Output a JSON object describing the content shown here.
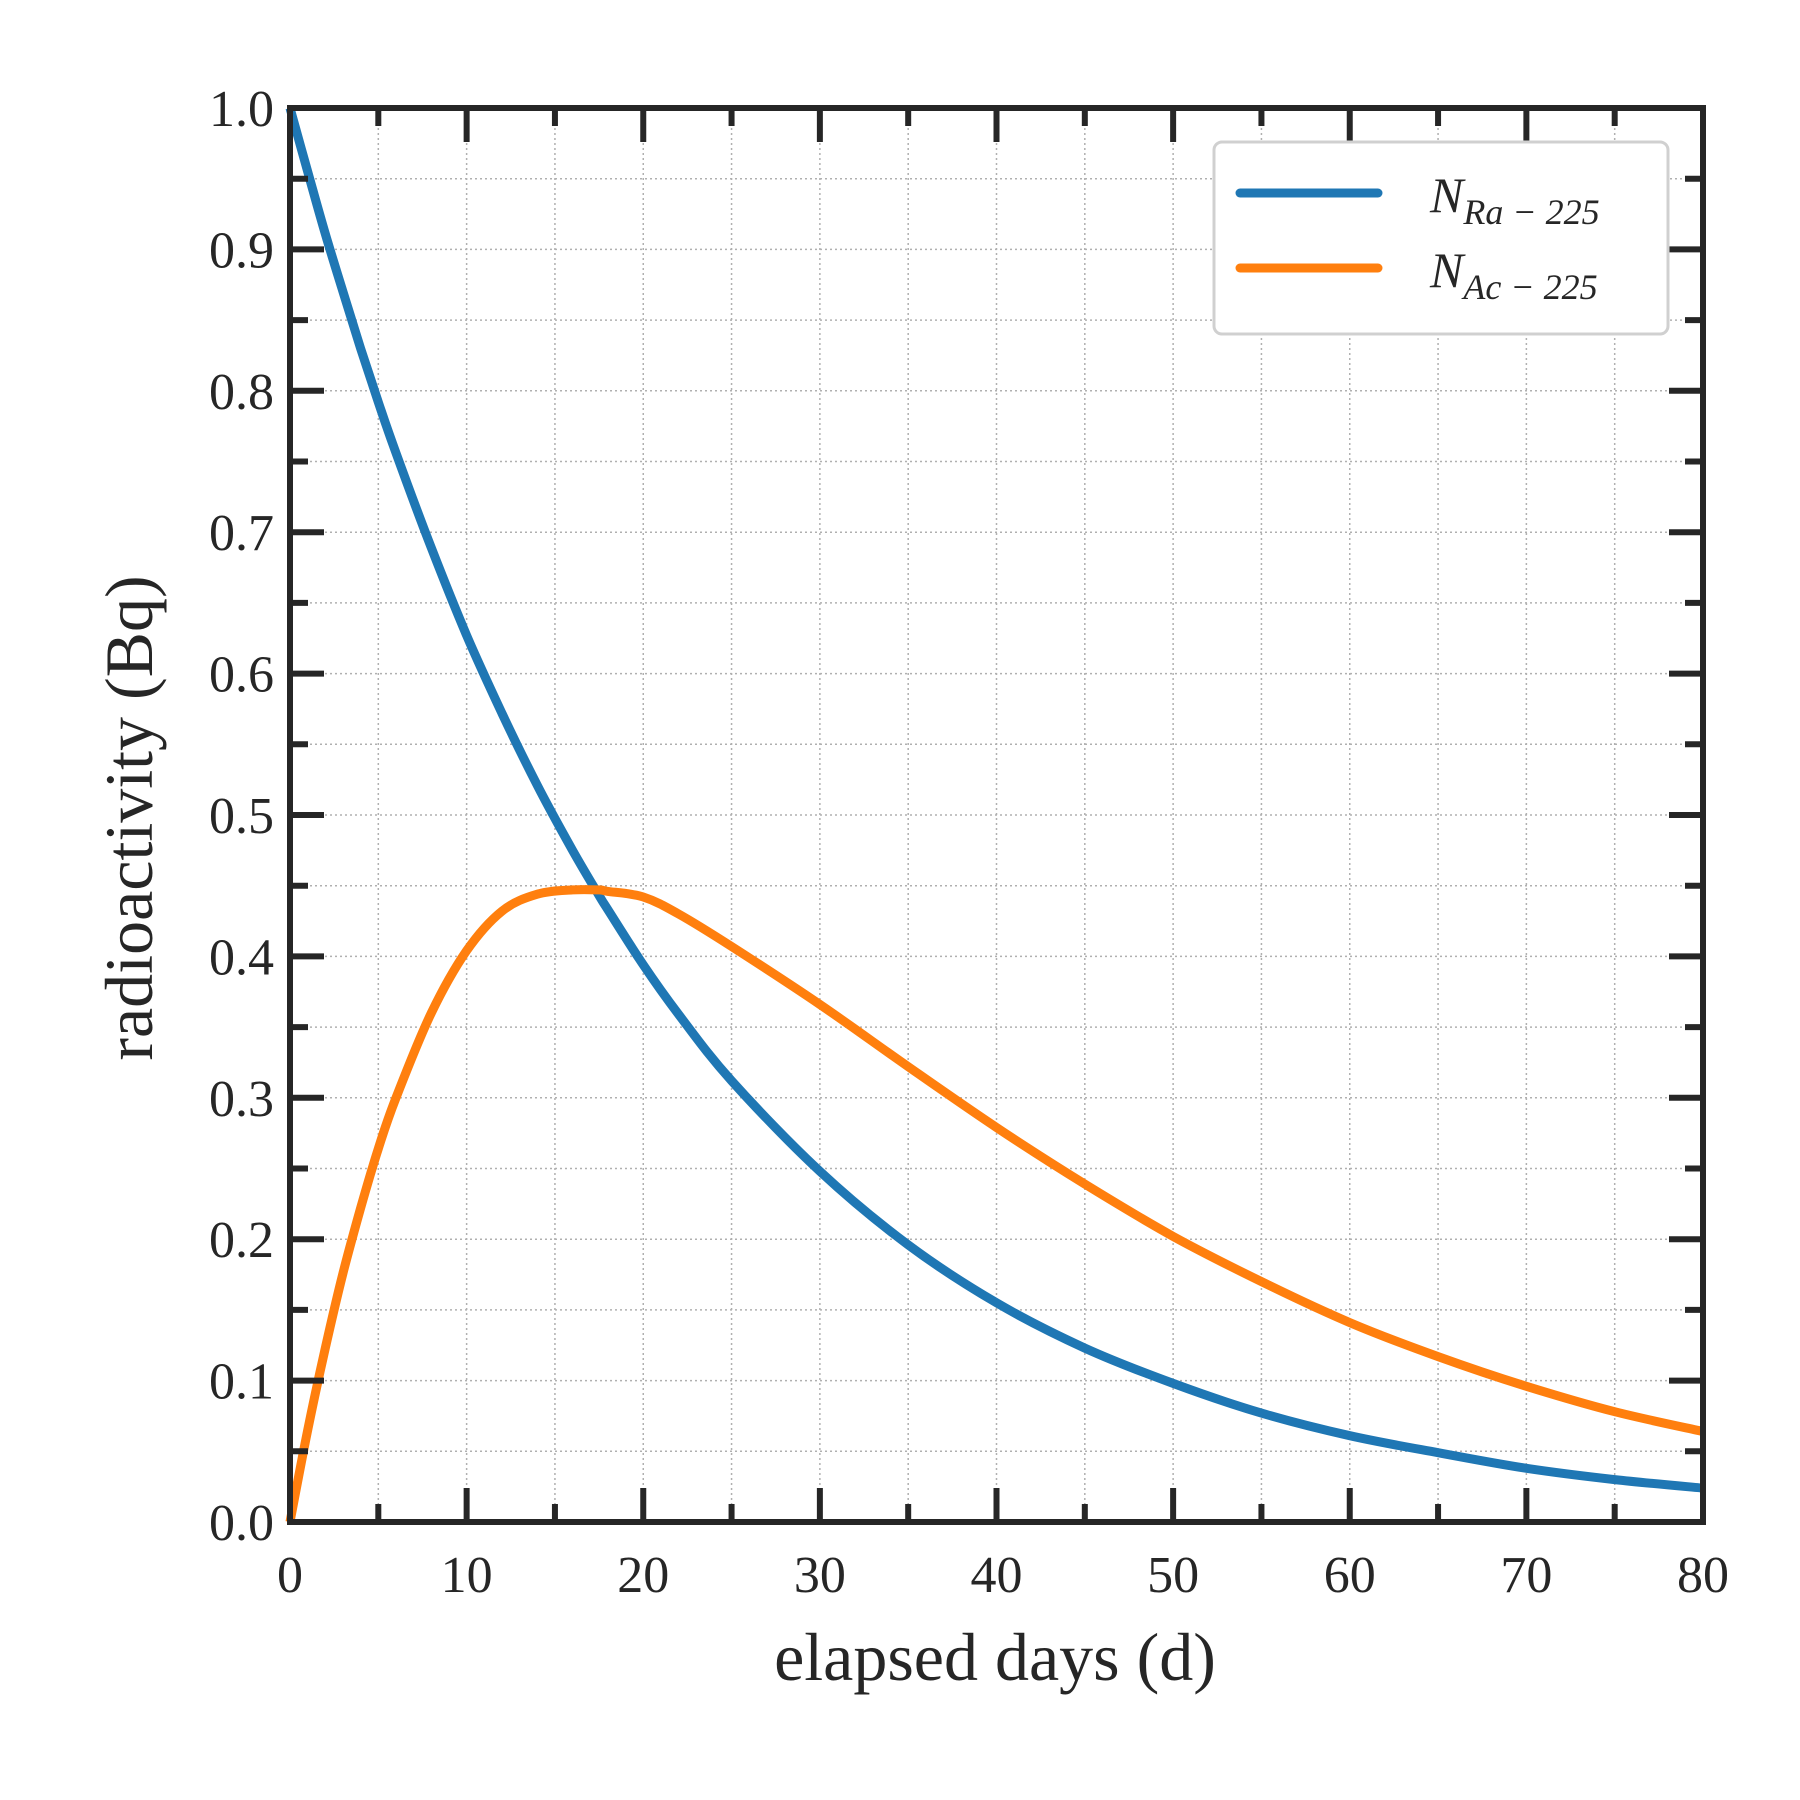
{
  "chart_data": {
    "type": "line",
    "xlabel": "elapsed days (d)",
    "ylabel": "radioactivity (Bq)",
    "xlim": [
      0,
      80
    ],
    "ylim": [
      0,
      1.0
    ],
    "x_ticks": [
      "0",
      "10",
      "20",
      "30",
      "40",
      "50",
      "60",
      "70",
      "80"
    ],
    "y_ticks": [
      "0.0",
      "0.1",
      "0.2",
      "0.3",
      "0.4",
      "0.5",
      "0.6",
      "0.7",
      "0.8",
      "0.9",
      "1.0"
    ],
    "grid": true,
    "legend_position": "top-right",
    "x": [
      0,
      1,
      2,
      3,
      4,
      5,
      6,
      8,
      10,
      12,
      14,
      16,
      17.5,
      18,
      20,
      22,
      25,
      30,
      35,
      40,
      45,
      50,
      55,
      60,
      65,
      70,
      75,
      80
    ],
    "series": [
      {
        "name": "N",
        "name_sub": "Ra − 225",
        "color": "#1f77b4",
        "values": [
          1.0,
          0.955,
          0.911,
          0.87,
          0.83,
          0.792,
          0.756,
          0.689,
          0.627,
          0.572,
          0.521,
          0.475,
          0.443,
          0.433,
          0.394,
          0.359,
          0.312,
          0.248,
          0.196,
          0.155,
          0.123,
          0.098,
          0.077,
          0.061,
          0.049,
          0.038,
          0.03,
          0.024
        ]
      },
      {
        "name": "N",
        "name_sub": "Ac − 225",
        "color": "#ff7f0e",
        "values": [
          0.0,
          0.065,
          0.123,
          0.176,
          0.222,
          0.264,
          0.3,
          0.36,
          0.404,
          0.432,
          0.444,
          0.447,
          0.447,
          0.446,
          0.442,
          0.43,
          0.407,
          0.366,
          0.322,
          0.279,
          0.239,
          0.202,
          0.17,
          0.141,
          0.117,
          0.096,
          0.078,
          0.064
        ]
      }
    ]
  }
}
